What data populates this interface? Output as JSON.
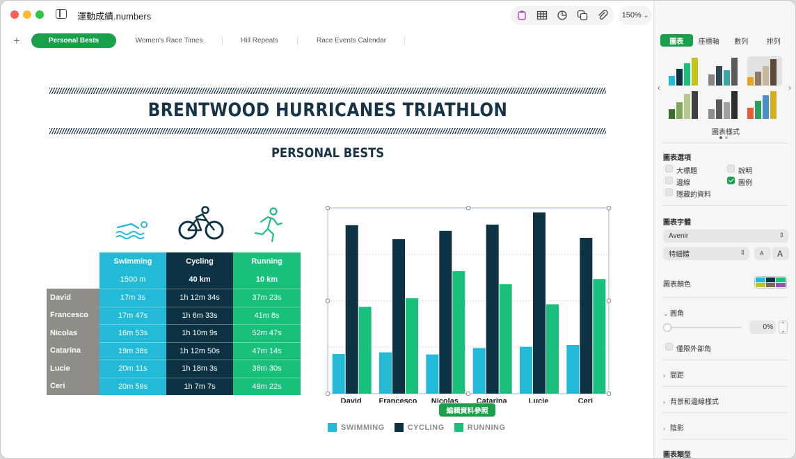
{
  "window": {
    "title": "運動成績.numbers",
    "zoom": "150%"
  },
  "toolbar": {
    "icons": [
      "text-icon",
      "table-icon",
      "chart-icon",
      "shape-icon",
      "media-icon"
    ],
    "right_icons": [
      "comment-icon",
      "share-icon",
      "format-brush-icon",
      "organize-icon"
    ]
  },
  "sheets": {
    "add": "+",
    "tabs": [
      "Personal Bests",
      "Women's Race Times",
      "Hill Repeats",
      "Race Events Calendar"
    ]
  },
  "doc": {
    "title": "BRENTWOOD HURRICANES TRIATHLON",
    "subtitle": "PERSONAL BESTS"
  },
  "table": {
    "headers": [
      "Swimming",
      "Cycling",
      "Running"
    ],
    "distances": [
      "1500 m",
      "40 km",
      "10 km"
    ],
    "rows": [
      {
        "name": "David",
        "swim": "17m 3s",
        "cycle": "1h 12m 34s",
        "run": "37m 23s"
      },
      {
        "name": "Francesco",
        "swim": "17m 47s",
        "cycle": "1h 6m 33s",
        "run": "41m 8s"
      },
      {
        "name": "Nicolas",
        "swim": "16m 53s",
        "cycle": "1h 10m 9s",
        "run": "52m 47s"
      },
      {
        "name": "Catarina",
        "swim": "19m 38s",
        "cycle": "1h 12m 50s",
        "run": "47m 14s"
      },
      {
        "name": "Lucie",
        "swim": "20m 11s",
        "cycle": "1h 18m 3s",
        "run": "38m 30s"
      },
      {
        "name": "Ceri",
        "swim": "20m 59s",
        "cycle": "1h 7m 7s",
        "run": "49m 22s"
      }
    ]
  },
  "chart_data": {
    "type": "bar",
    "categories": [
      "David",
      "Francesco",
      "Nicolas",
      "Catarina",
      "Lucie",
      "Ceri"
    ],
    "series": [
      {
        "name": "SWIMMING",
        "color": "#22bad6",
        "values": [
          17.05,
          17.78,
          16.88,
          19.63,
          20.18,
          20.98
        ]
      },
      {
        "name": "CYCLING",
        "color": "#0c3243",
        "values": [
          72.57,
          66.55,
          70.15,
          72.83,
          78.05,
          67.12
        ]
      },
      {
        "name": "RUNNING",
        "color": "#19c07c",
        "values": [
          37.38,
          41.13,
          52.78,
          47.23,
          38.5,
          49.37
        ]
      }
    ],
    "ylim": [
      0,
      80
    ],
    "gridlines": true,
    "legend_position": "bottom",
    "xlabel": "",
    "ylabel": ""
  },
  "chart_ui": {
    "edit_ref_label": "編輯資料參照"
  },
  "panel": {
    "tabs": [
      "圖表",
      "座標軸",
      "數列",
      "排列"
    ],
    "styles_label": "圖表樣式",
    "options_title": "圖表選項",
    "options": [
      {
        "label": "大標題",
        "checked": false
      },
      {
        "label": "說明",
        "checked": false
      },
      {
        "label": "邊線",
        "checked": false
      },
      {
        "label": "圖例",
        "checked": true
      },
      {
        "label": "隱藏的資料",
        "checked": false
      }
    ],
    "font_title": "圖表字體",
    "font_name": "Avenir",
    "font_style": "特細體",
    "font_small": "A",
    "font_large": "A",
    "color_label": "圖表顏色",
    "corner_title": "圓角",
    "corner_value": "0%",
    "outer_only": "僅限外部角",
    "spacing": "間距",
    "bg_border": "背景和邊線樣式",
    "shadow": "陰影",
    "chart_type": "圖表類型"
  }
}
